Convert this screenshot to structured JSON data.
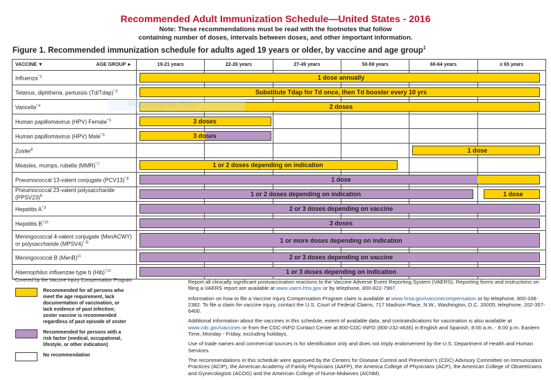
{
  "title": "Recommended Adult Immunization Schedule—United States - 2016",
  "note1": "Note: These recommendations must be read with the footnotes that follow",
  "note2": "containing number of doses, intervals between doses, and other important information.",
  "figure_title": "Figure 1. Recommended immunization schedule for adults aged 19 years or older, by vaccine and age group",
  "figure_sup": "1",
  "header": {
    "vaccine": "VACCINE ▼",
    "age_group": "AGE GROUP ►",
    "ages": [
      "19-21 years",
      "22-26 years",
      "27-49 years",
      "50-59 years",
      "60-64 years",
      "≥ 65 years"
    ]
  },
  "colors": {
    "yellow": "#fed100",
    "purple": "#b795c5"
  },
  "rows": [
    {
      "name": "Influenza",
      "sup": "*,2",
      "segments": [
        {
          "from": 0,
          "to": 6,
          "color": "yellow"
        }
      ],
      "labels": [
        {
          "text": "1 dose annually",
          "from": 0,
          "to": 6
        }
      ]
    },
    {
      "name": "Tetanus, diphtheria, pertussis (Td/Tdap)",
      "sup": "*,3",
      "segments": [
        {
          "from": 0,
          "to": 6,
          "color": "yellow"
        }
      ],
      "labels": [
        {
          "text": "Substitute Tdap for Td once, then Td booster every 10 yrs",
          "from": 0,
          "to": 6
        }
      ]
    },
    {
      "name": "Varicella",
      "sup": "*,4",
      "segments": [
        {
          "from": 0,
          "to": 6,
          "color": "yellow"
        }
      ],
      "labels": [
        {
          "text": "2 doses",
          "from": 0,
          "to": 6
        }
      ]
    },
    {
      "name": "Human papillomavirus (HPV) Female",
      "sup": "*,5",
      "segments": [
        {
          "from": 0,
          "to": 2,
          "color": "yellow"
        }
      ],
      "labels": [
        {
          "text": "3 doses",
          "from": 0,
          "to": 2
        }
      ]
    },
    {
      "name": "Human papillomavirus (HPV) Male",
      "sup": "*,5",
      "segments": [
        {
          "from": 0,
          "to": 1,
          "color": "yellow"
        },
        {
          "from": 1,
          "to": 2,
          "color": "purple"
        }
      ],
      "labels": [
        {
          "text": "3 doses",
          "from": 0,
          "to": 2
        }
      ]
    },
    {
      "name": "Zoster",
      "sup": "6",
      "segments": [
        {
          "from": 4,
          "to": 6,
          "color": "yellow"
        }
      ],
      "labels": [
        {
          "text": "1 dose",
          "from": 4,
          "to": 6
        }
      ]
    },
    {
      "name": "Measles, mumps, rubella (MMR)",
      "sup": "*,7",
      "segments": [
        {
          "from": 0,
          "to": 3.85,
          "color": "yellow"
        }
      ],
      "labels": [
        {
          "text": "1 or 2 doses depending on indication",
          "from": 0,
          "to": 3.85
        }
      ]
    },
    {
      "name": "Pneumococcal 13-valent conjugate (PCV13)",
      "sup": "*,8",
      "segments": [
        {
          "from": 0,
          "to": 5,
          "color": "purple"
        },
        {
          "from": 5,
          "to": 6,
          "color": "yellow"
        }
      ],
      "labels": [
        {
          "text": "1 dose",
          "from": 0,
          "to": 6
        }
      ]
    },
    {
      "name": "Pneumococcal 23-valent polysaccharide (PPSV23)",
      "sup": "8",
      "segments": [
        {
          "from": 0,
          "to": 4.96,
          "color": "purple"
        },
        {
          "from": 5.05,
          "to": 6,
          "color": "yellow"
        }
      ],
      "labels": [
        {
          "text": "1 or 2 doses depending on indication",
          "from": 0,
          "to": 4.96
        },
        {
          "text": "1 dose",
          "from": 5.05,
          "to": 6
        }
      ]
    },
    {
      "name": "Hepatitis A",
      "sup": "*,9",
      "segments": [
        {
          "from": 0,
          "to": 6,
          "color": "purple"
        }
      ],
      "labels": [
        {
          "text": "2 or 3 doses depending on vaccine",
          "from": 0,
          "to": 6
        }
      ]
    },
    {
      "name": "Hepatitis B",
      "sup": "*,10",
      "segments": [
        {
          "from": 0,
          "to": 6,
          "color": "purple"
        }
      ],
      "labels": [
        {
          "text": "3 doses",
          "from": 0,
          "to": 6
        }
      ]
    },
    {
      "name": "Meningococcal 4-valent conjugate (MenACWY) or polysaccharide (MPSV4)",
      "sup": "*,11",
      "tall": true,
      "segments": [
        {
          "from": 0,
          "to": 6,
          "color": "purple"
        }
      ],
      "labels": [
        {
          "text": "1 or more doses depending on indication",
          "from": 0,
          "to": 6
        }
      ]
    },
    {
      "name": "Meningococcal B (MenB)",
      "sup": "11",
      "segments": [
        {
          "from": 0,
          "to": 6,
          "color": "purple"
        }
      ],
      "labels": [
        {
          "text": "2 or 3 doses depending on vaccine",
          "from": 0,
          "to": 6
        }
      ]
    },
    {
      "name": "Haemophilus influenzae type b (Hib)",
      "italic": "Haemophilus influenzae",
      "sup": "*,12",
      "segments": [
        {
          "from": 0,
          "to": 6,
          "color": "purple"
        }
      ],
      "labels": [
        {
          "text": "1 or 3 doses depending on indication",
          "from": 0,
          "to": 6
        }
      ]
    }
  ],
  "legend": {
    "covered": "*Covered by the Vaccine Injury Compensation Program",
    "yellow_text": "Recommended for all persons who meet the age requirement, lack documentation of vaccination, or lack evidence of past infection; zoster vaccine is recommended regardless of past episode of zoster",
    "purple_text": "Recommended for persons with a risk factor (medical, occupational, lifestyle, or other indication)",
    "none_text": "No recommendation"
  },
  "info": {
    "p1a": "Report all clinically significant postvaccination reactions to the Vaccine Adverse Event Reporting System (VAERS). Reporting forms and instructions on filing a VAERS report are available at ",
    "p1link": "www.vaers.hhs.gov",
    "p1b": " or by telephone, 800-822-7967.",
    "p2a": "Information on how to file a Vaccine Injury Compensation Program claim is available at ",
    "p2link": "www.hrsa.gov/vaccinecompensation",
    "p2b": " or by telephone, 800-338-2382. To file a claim for vaccine injury, contact the U.S. Court of Federal Claims, 717 Madison Place, N.W., Washington, D.C. 20005; telephone, 202-357-6400.",
    "p3a": "Additional information about the vaccines in this schedule, extent of available data, and contraindications for vaccination is also available at ",
    "p3link": "www.cdc.gov/vaccines",
    "p3b": " or from the CDC-INFO Contact Center at 800-CDC-INFO (800-232-4636) in English and Spanish, 8:00 a.m. - 8:00 p.m. Eastern Time, Monday - Friday, excluding holidays.",
    "p4": "Use of trade names and commercial sources is for identification only and does not imply endorsement by the U.S. Department of Health and Human Services.",
    "p5": "The recommendations in this schedule were approved by the Centers for Disease Control and Prevention's (CDC) Advisory Committee on Immunization Practices (ACIP), the American Academy of Family Physicians (AAFP), the America College of Physicians (ACP), the American College of Obstetricians and Gynecologists (ACOG) and the American College of Nurse-Midwives (ACNM)."
  },
  "overlay_text": "Rectangular Ship"
}
